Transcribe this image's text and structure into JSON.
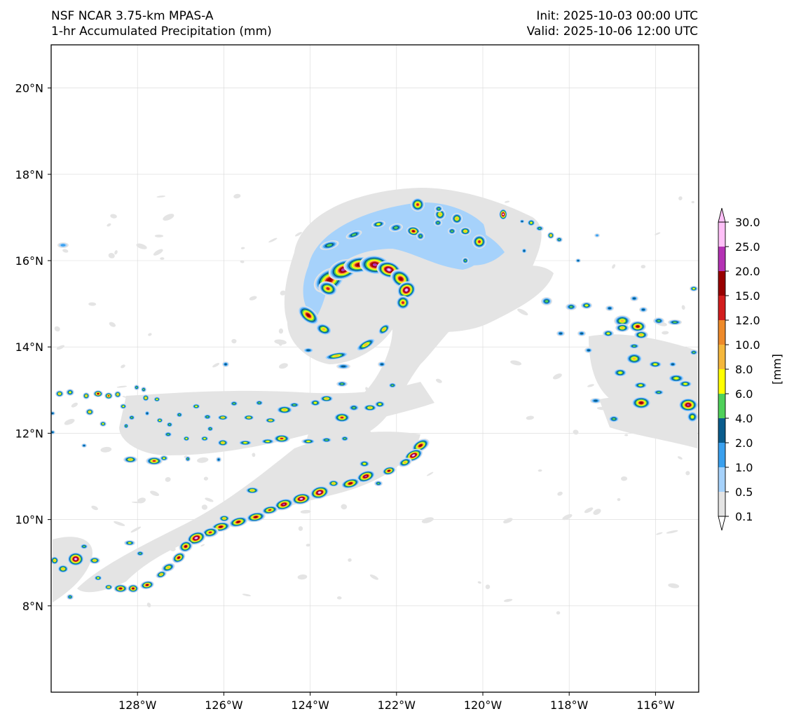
{
  "header": {
    "model": "NSF NCAR 3.75-km MPAS-A",
    "field": "1-hr Accumulated Precipitation (mm)",
    "init": "Init: 2025-10-03 00:00 UTC",
    "valid": "Valid: 2025-10-06 12:00 UTC"
  },
  "map": {
    "lon_range": [
      -130,
      -115
    ],
    "lat_range": [
      6,
      21
    ],
    "lon_ticks": [
      {
        "value": -128,
        "label": "128°W"
      },
      {
        "value": -126,
        "label": "126°W"
      },
      {
        "value": -124,
        "label": "124°W"
      },
      {
        "value": -122,
        "label": "122°W"
      },
      {
        "value": -120,
        "label": "120°W"
      },
      {
        "value": -118,
        "label": "118°W"
      },
      {
        "value": -116,
        "label": "116°W"
      }
    ],
    "lat_ticks": [
      {
        "value": 8,
        "label": "8°N"
      },
      {
        "value": 10,
        "label": "10°N"
      },
      {
        "value": 12,
        "label": "12°N"
      },
      {
        "value": 14,
        "label": "14°N"
      },
      {
        "value": 16,
        "label": "16°N"
      },
      {
        "value": 18,
        "label": "18°N"
      },
      {
        "value": 20,
        "label": "20°N"
      }
    ],
    "gridlines": true
  },
  "colorbar": {
    "unit_label": "[mm]",
    "levels": [
      "0.1",
      "0.5",
      "1.0",
      "2.0",
      "4.0",
      "6.0",
      "8.0",
      "10.0",
      "12.0",
      "15.0",
      "20.0",
      "25.0",
      "30.0"
    ],
    "colors": [
      "#e4e4e4",
      "#a6d2fb",
      "#3aa0ee",
      "#0a5c8c",
      "#4fd15a",
      "#ffff00",
      "#f5b73c",
      "#ee8a2a",
      "#d21d1d",
      "#980000",
      "#b432b4",
      "#ffc0f8"
    ],
    "extend": "both"
  }
}
